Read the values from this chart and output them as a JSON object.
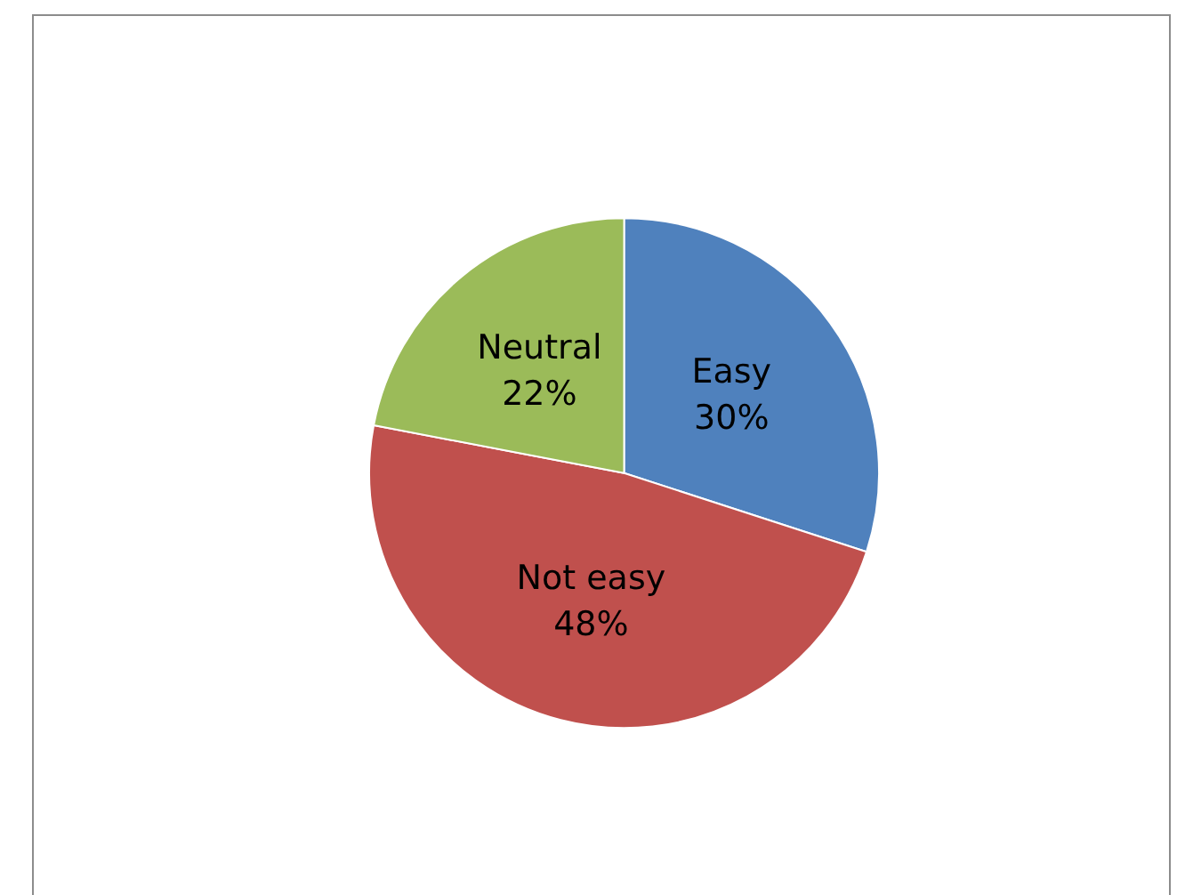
{
  "chart_data": {
    "type": "pie",
    "categories": [
      "Easy",
      "Not easy",
      "Neutral"
    ],
    "values": [
      30,
      48,
      22
    ],
    "colors": [
      "#4f81bd",
      "#c0504d",
      "#9bbb59"
    ],
    "value_labels": [
      "30%",
      "48%",
      "22%"
    ],
    "legend": false
  }
}
